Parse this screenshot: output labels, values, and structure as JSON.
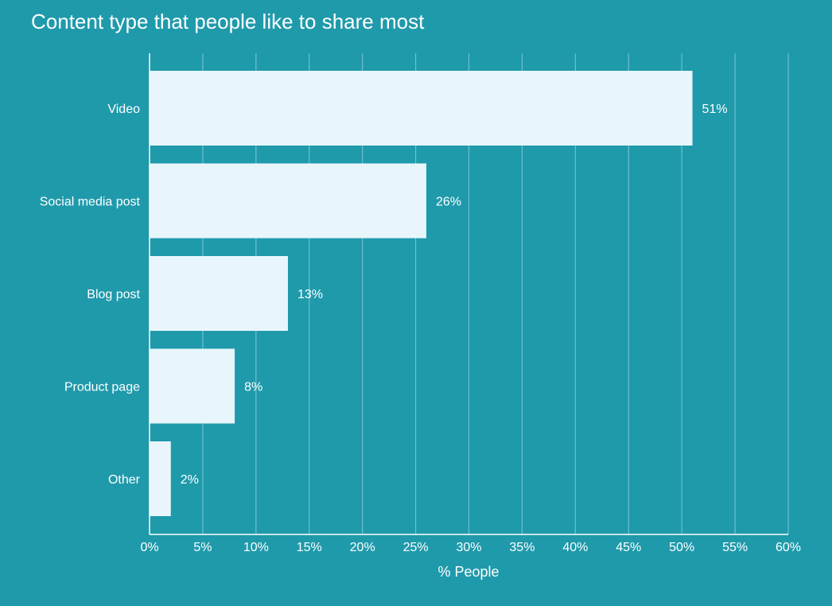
{
  "colors": {
    "background": "#1f9aab",
    "bar": "#e8f6fb",
    "text": "#ffffff",
    "grid": "#6cc0cc",
    "axis": "#ffffff"
  },
  "chart_data": {
    "type": "bar",
    "orientation": "horizontal",
    "title": "Content type that people like to share most",
    "xlabel": "% People",
    "ylabel": "",
    "categories": [
      "Video",
      "Social media post",
      "Blog post",
      "Product page",
      "Other"
    ],
    "values": [
      51,
      26,
      13,
      8,
      2
    ],
    "value_labels": [
      "51%",
      "26%",
      "13%",
      "8%",
      "2%"
    ],
    "xlim": [
      0,
      60
    ],
    "xticks": [
      0,
      5,
      10,
      15,
      20,
      25,
      30,
      35,
      40,
      45,
      50,
      55,
      60
    ],
    "xtick_labels": [
      "0%",
      "5%",
      "10%",
      "15%",
      "20%",
      "25%",
      "30%",
      "35%",
      "40%",
      "45%",
      "50%",
      "55%",
      "60%"
    ],
    "grid": "vertical",
    "legend": "none"
  }
}
